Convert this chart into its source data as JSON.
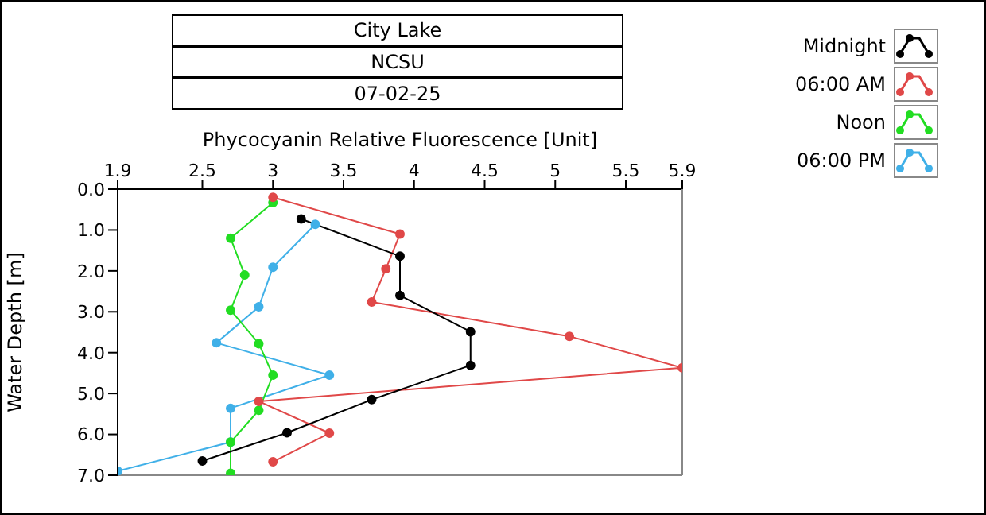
{
  "chart_data": {
    "type": "line",
    "title": "City Lake",
    "subtitle": "NCSU",
    "annotations": [
      "07-02-25"
    ],
    "xlabel": "Phycocyanin Relative Fluorescence [Unit]",
    "ylabel": "Water Depth [m]",
    "xlim": [
      1.9,
      5.9
    ],
    "xticks": [
      1.9,
      2.5,
      3,
      3.5,
      4,
      4.5,
      5,
      5.5,
      5.9
    ],
    "ylim": [
      7,
      0
    ],
    "yticks": [
      {
        "value": 0,
        "label": "0.0"
      },
      {
        "value": 1,
        "label": "1.0"
      },
      {
        "value": 2,
        "label": "2.0"
      },
      {
        "value": 3,
        "label": "3.0"
      },
      {
        "value": 4,
        "label": "4.0"
      },
      {
        "value": 5,
        "label": "5.0"
      },
      {
        "value": 6,
        "label": "6.0"
      },
      {
        "value": 7,
        "label": "7.0"
      }
    ],
    "grid": false,
    "legend": "top right",
    "marker": "circle",
    "line_style": "solid",
    "series": [
      {
        "name": "Midnight",
        "color": "#000000",
        "x": [
          3.2,
          3.9,
          3.9,
          4.4,
          4.4,
          3.7,
          3.1,
          2.5
        ],
        "values": [
          0.73,
          1.64,
          2.6,
          3.49,
          4.31,
          5.15,
          5.96,
          6.65
        ]
      },
      {
        "name": "06:00 AM",
        "color": "#e04848",
        "x": [
          3.0,
          3.9,
          3.8,
          3.7,
          5.1,
          5.9,
          2.9,
          3.4,
          3.0
        ],
        "values": [
          0.2,
          1.1,
          1.95,
          2.76,
          3.6,
          4.37,
          5.19,
          5.97,
          6.67
        ]
      },
      {
        "name": "Noon",
        "color": "#22dd22",
        "x": [
          3.0,
          2.7,
          2.8,
          2.7,
          2.9,
          3.0,
          2.9,
          2.7,
          2.7
        ],
        "values": [
          0.33,
          1.2,
          2.1,
          2.96,
          3.78,
          4.55,
          5.41,
          6.19,
          6.95
        ]
      },
      {
        "name": "06:00 PM",
        "color": "#40b0e8",
        "x": [
          3.3,
          3.0,
          2.9,
          2.6,
          3.4,
          2.7,
          2.7,
          1.9
        ],
        "values": [
          0.86,
          1.91,
          2.88,
          3.76,
          4.55,
          5.36,
          6.19,
          6.9
        ]
      }
    ]
  }
}
